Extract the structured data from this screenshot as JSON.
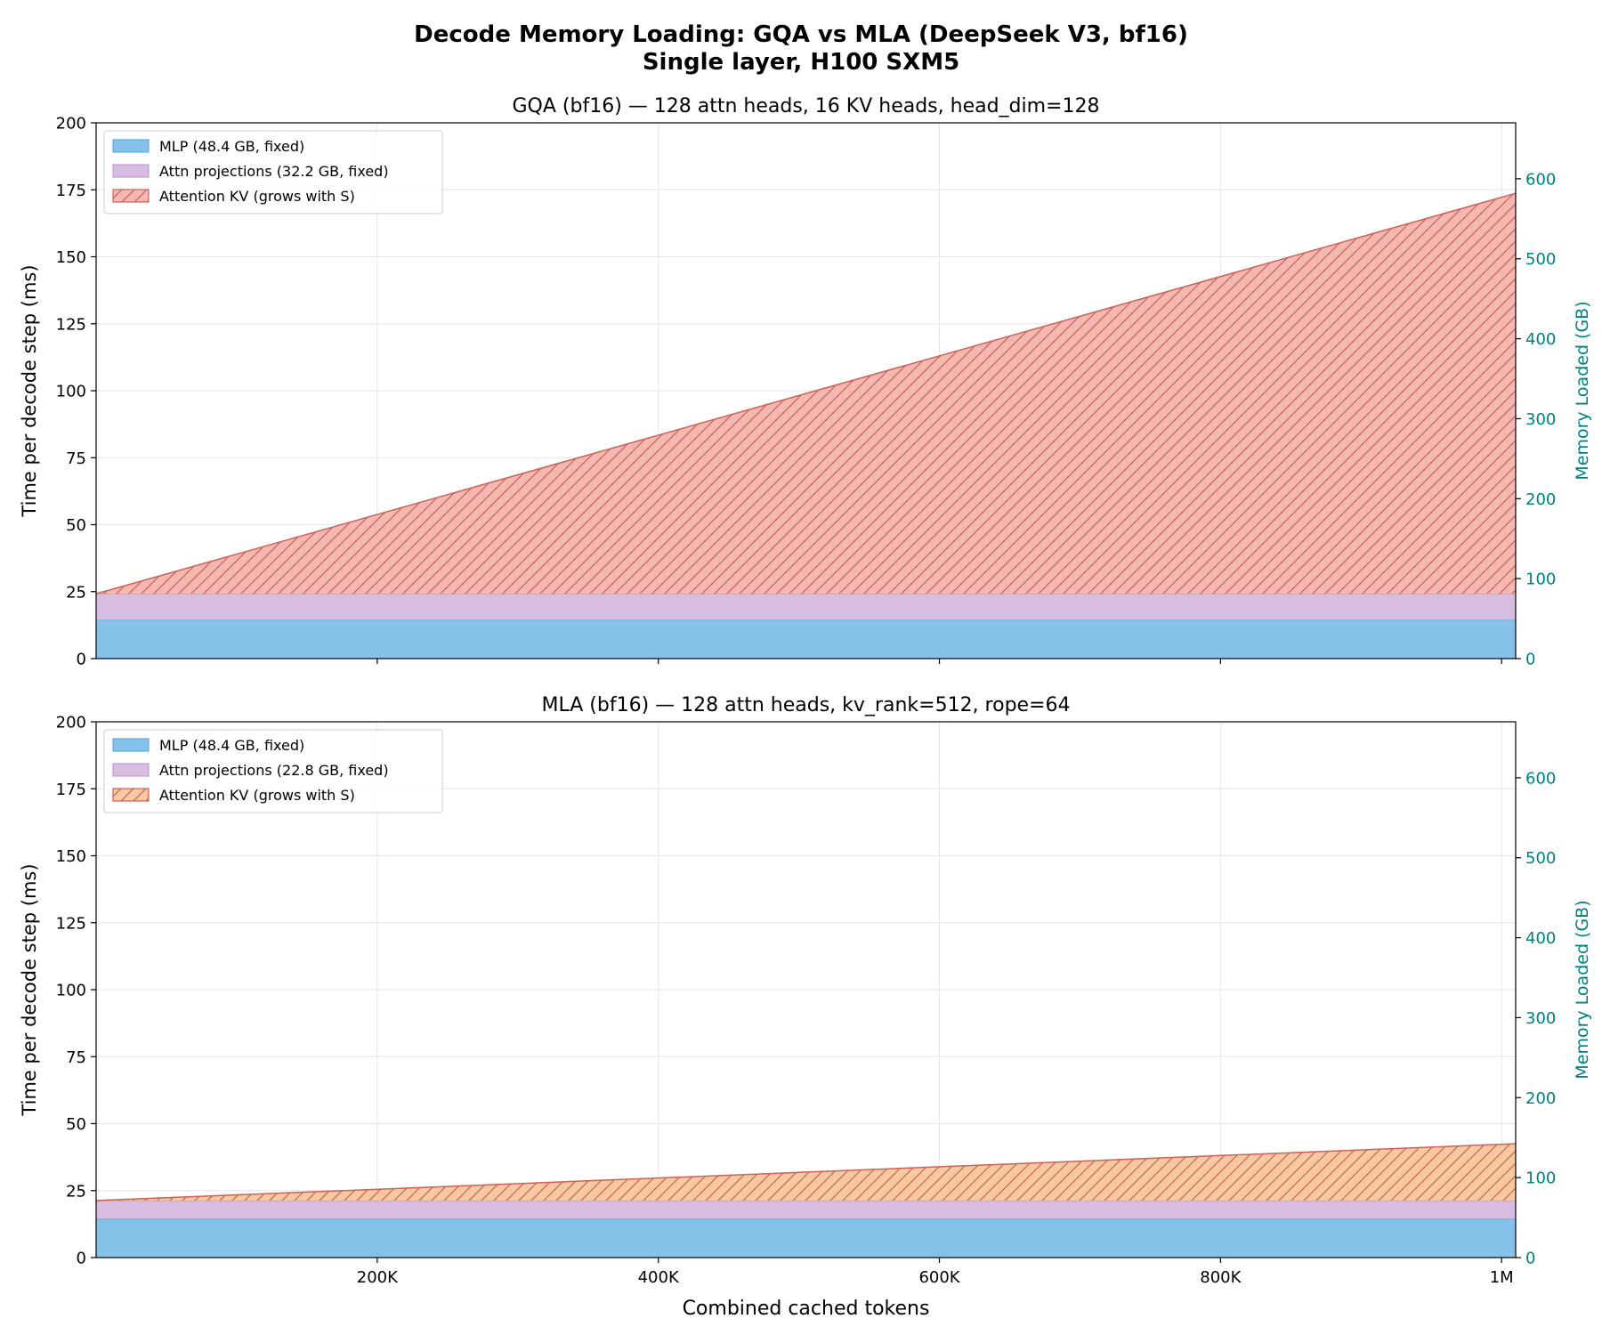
{
  "figure": {
    "title_line1": "Decode Memory Loading: GQA vs MLA (DeepSeek V3, bf16)",
    "title_line2": "Single layer, H100 SXM5"
  },
  "colors": {
    "mlp_fill": "#85c1e9",
    "mlp_edge": "#5dade2",
    "proj_fill": "#d7bde2",
    "proj_edge": "#c39bd3",
    "kv_gqa_fill": "#f5b7b1",
    "kv_mla_fill": "#f8c9a0",
    "kv_edge": "#cd6155",
    "right_axis": "#008080",
    "grid": "#e6e6e6"
  },
  "chart_data": [
    {
      "type": "area",
      "stacked": true,
      "title": "GQA (bf16) — 128 attn heads, 16 KV heads, head_dim=128",
      "xlabel": "",
      "ylabel": "Time per decode step (ms)",
      "y2label": "Memory Loaded (GB)",
      "xlim": [
        0,
        1010000
      ],
      "ylim": [
        0,
        200
      ],
      "y2lim": [
        0,
        670
      ],
      "x_ticks": [
        200000,
        400000,
        600000,
        800000,
        1000000
      ],
      "x_tick_labels": [
        "",
        "",
        "",
        "",
        ""
      ],
      "y_ticks": [
        0,
        25,
        50,
        75,
        100,
        125,
        150,
        175,
        200
      ],
      "y_tick_labels": [
        "0",
        "25",
        "50",
        "75",
        "100",
        "125",
        "150",
        "175",
        "200"
      ],
      "y2_ticks": [
        0,
        100,
        200,
        300,
        400,
        500,
        600
      ],
      "y2_tick_labels": [
        "0",
        "100",
        "200",
        "300",
        "400",
        "500",
        "600"
      ],
      "grid": true,
      "legend_position": "top-left",
      "x": [
        0,
        1010000
      ],
      "series": [
        {
          "name": "MLP (48.4 GB, fixed)",
          "values": [
            14.5,
            14.5
          ],
          "color": "#85c1e9",
          "edge": "#5dade2",
          "hatch": false
        },
        {
          "name": "Attn projections (32.2 GB, fixed)",
          "values": [
            9.7,
            9.7
          ],
          "color": "#d7bde2",
          "edge": "#c39bd3",
          "hatch": false
        },
        {
          "name": "Attention KV (grows with S)",
          "values": [
            0,
            149.5
          ],
          "color": "#f5b7b1",
          "edge": "#cd6155",
          "hatch": true
        }
      ]
    },
    {
      "type": "area",
      "stacked": true,
      "title": "MLA (bf16) — 128 attn heads, kv_rank=512, rope=64",
      "xlabel": "Combined cached tokens",
      "ylabel": "Time per decode step (ms)",
      "y2label": "Memory Loaded (GB)",
      "xlim": [
        0,
        1010000
      ],
      "ylim": [
        0,
        200
      ],
      "y2lim": [
        0,
        670
      ],
      "x_ticks": [
        200000,
        400000,
        600000,
        800000,
        1000000
      ],
      "x_tick_labels": [
        "200K",
        "400K",
        "600K",
        "800K",
        "1M"
      ],
      "y_ticks": [
        0,
        25,
        50,
        75,
        100,
        125,
        150,
        175,
        200
      ],
      "y_tick_labels": [
        "0",
        "25",
        "50",
        "75",
        "100",
        "125",
        "150",
        "175",
        "200"
      ],
      "y2_ticks": [
        0,
        100,
        200,
        300,
        400,
        500,
        600
      ],
      "y2_tick_labels": [
        "0",
        "100",
        "200",
        "300",
        "400",
        "500",
        "600"
      ],
      "grid": true,
      "legend_position": "top-left",
      "x": [
        0,
        1010000
      ],
      "series": [
        {
          "name": "MLP (48.4 GB, fixed)",
          "values": [
            14.5,
            14.5
          ],
          "color": "#85c1e9",
          "edge": "#5dade2",
          "hatch": false
        },
        {
          "name": "Attn projections (22.8 GB, fixed)",
          "values": [
            6.8,
            6.8
          ],
          "color": "#d7bde2",
          "edge": "#c39bd3",
          "hatch": false
        },
        {
          "name": "Attention KV (grows with S)",
          "values": [
            0,
            21.2
          ],
          "color": "#f8c9a0",
          "edge": "#cd6155",
          "hatch": true
        }
      ]
    }
  ]
}
